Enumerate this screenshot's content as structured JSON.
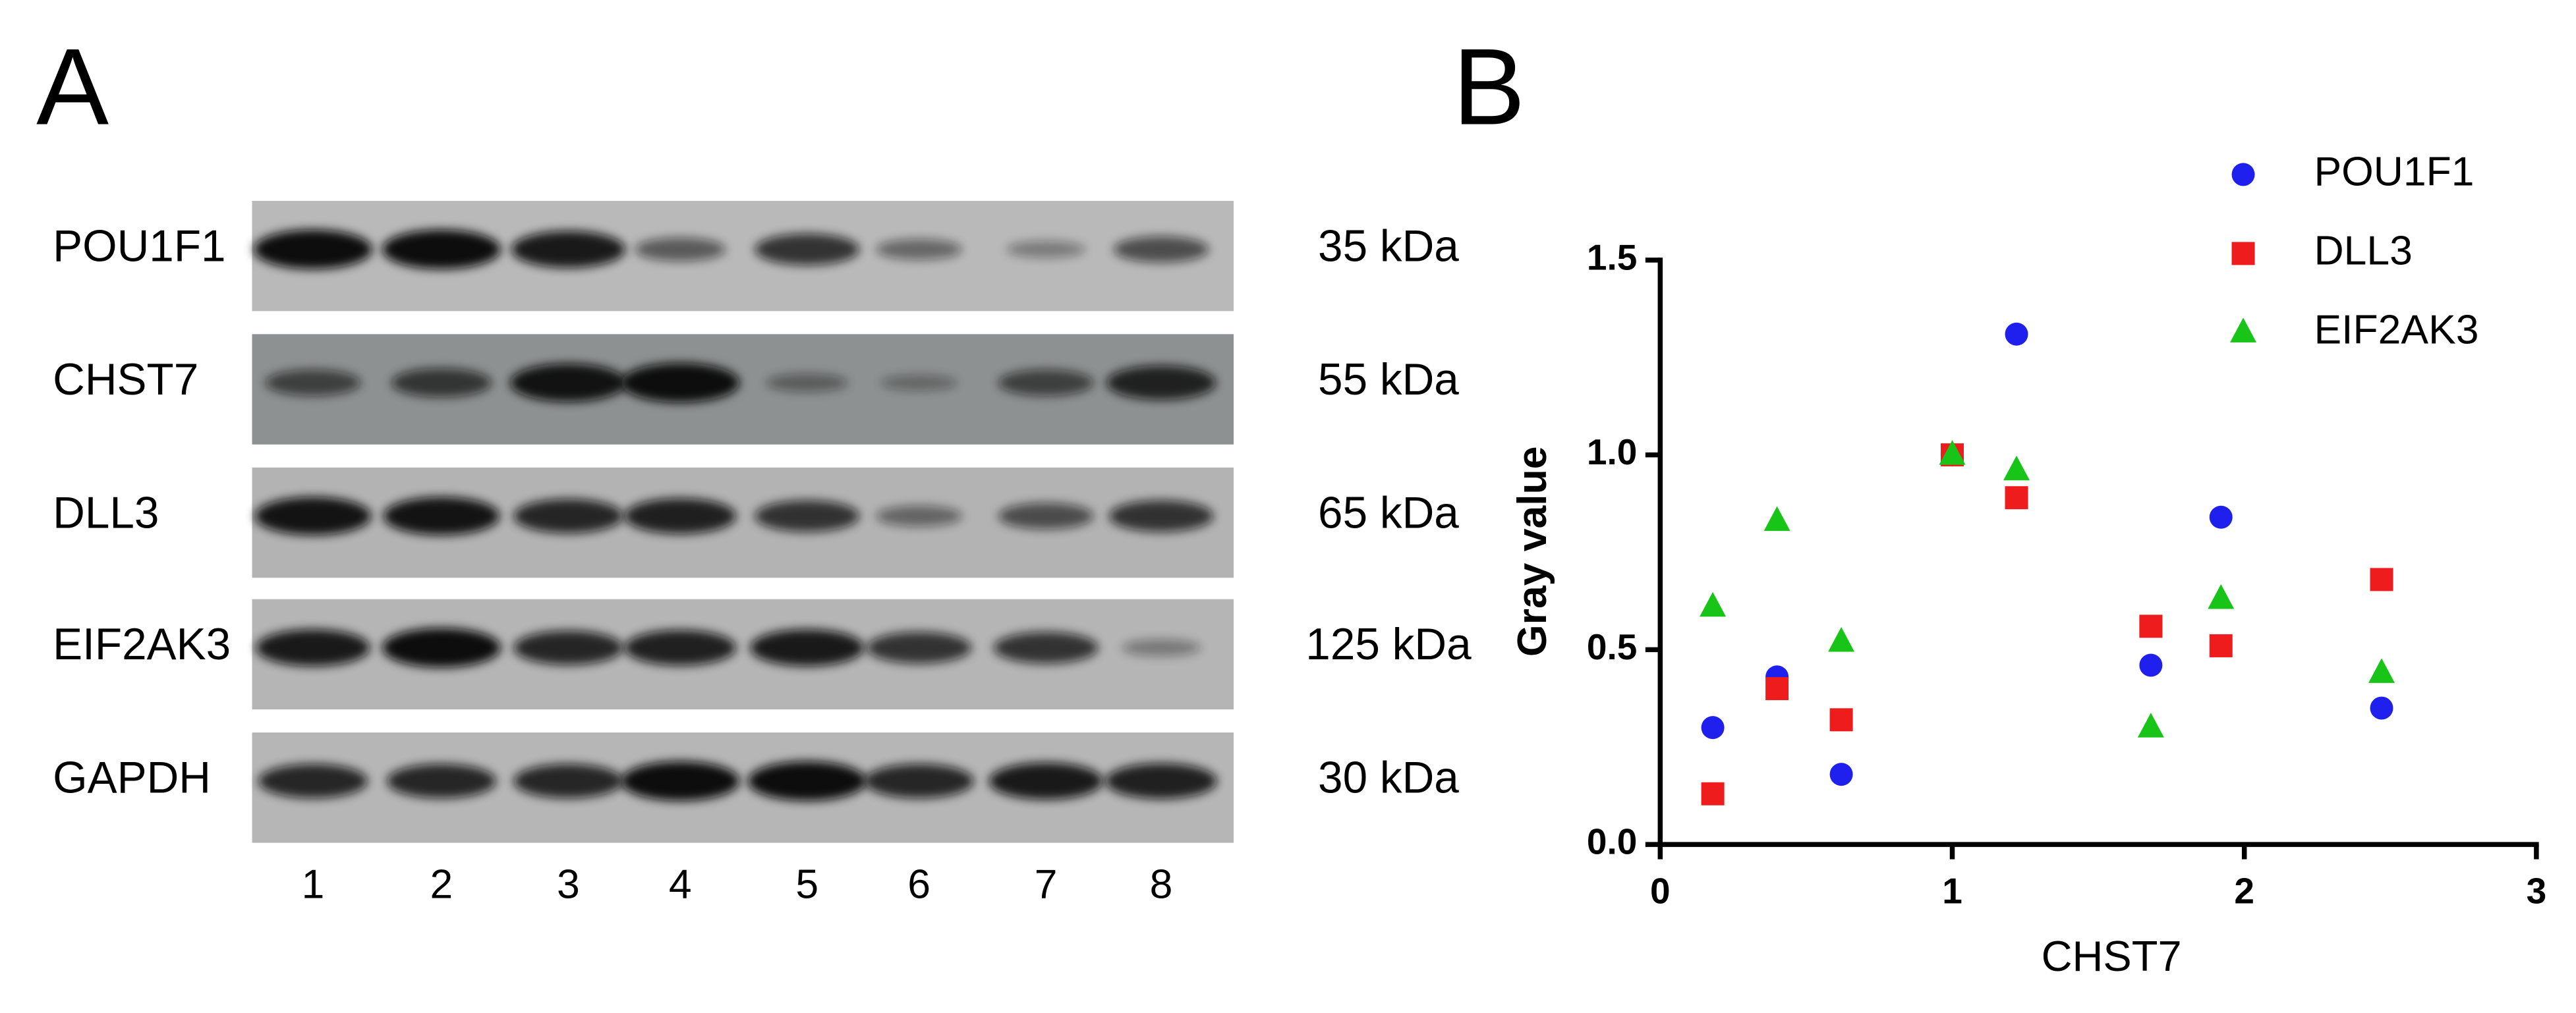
{
  "panel_labels": [
    "A",
    "B"
  ],
  "blot": {
    "rows": [
      {
        "protein": "POU1F1",
        "weight": "35 kDa"
      },
      {
        "protein": "CHST7",
        "weight": "55 kDa"
      },
      {
        "protein": "DLL3",
        "weight": "65 kDa"
      },
      {
        "protein": "EIF2AK3",
        "weight": "125 kDa"
      },
      {
        "protein": "GAPDH",
        "weight": "30 kDa"
      }
    ],
    "lanes": [
      "1",
      "2",
      "3",
      "4",
      "5",
      "6",
      "7",
      "8"
    ]
  },
  "chart_data": {
    "type": "scatter",
    "x_label": "CHST7",
    "y_label": "Gray value",
    "x": [
      0.18,
      0.4,
      0.62,
      1.0,
      1.22,
      1.68,
      1.92,
      2.47
    ],
    "series": [
      {
        "name": "POU1F1",
        "color": "#2020ee",
        "marker": "circle",
        "values": [
          0.3,
          0.43,
          0.18,
          1.0,
          1.31,
          0.46,
          0.84,
          0.35
        ]
      },
      {
        "name": "DLL3",
        "color": "#ee1c1c",
        "marker": "square",
        "values": [
          0.13,
          0.4,
          0.32,
          1.0,
          0.89,
          0.56,
          0.51,
          0.68
        ]
      },
      {
        "name": "EIF2AK3",
        "color": "#18c418",
        "marker": "triangle",
        "values": [
          0.61,
          0.83,
          0.52,
          1.0,
          0.96,
          0.3,
          0.63,
          0.44
        ]
      }
    ],
    "xlim": [
      0,
      3
    ],
    "xticks": [
      0,
      1,
      2,
      3
    ],
    "ylim": [
      0,
      1.5
    ],
    "yticks": [
      {
        "value": 0,
        "label": "0.0"
      },
      0.5,
      {
        "value": 1,
        "label": "1.0"
      },
      1.5
    ],
    "legend": "top-right"
  }
}
